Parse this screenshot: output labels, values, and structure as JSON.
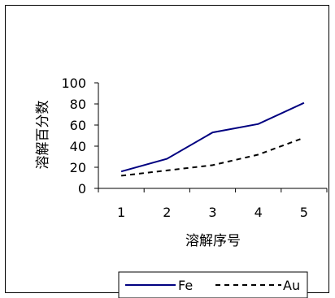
{
  "chart_data": {
    "type": "line",
    "categories": [
      "1",
      "2",
      "3",
      "4",
      "5"
    ],
    "series": [
      {
        "name": "Fe",
        "values": [
          16,
          28,
          53,
          61,
          81
        ],
        "color": "#000080",
        "style": "solid"
      },
      {
        "name": "Au",
        "values": [
          12,
          17,
          22,
          32,
          48
        ],
        "color": "#000000",
        "style": "dashed"
      }
    ],
    "xlabel": "溶解序号",
    "ylabel": "溶解百分数",
    "ylim": [
      0,
      100
    ],
    "yticks": [
      "0",
      "20",
      "40",
      "60",
      "80",
      "100"
    ],
    "grid": false,
    "legend_position": "bottom-right"
  }
}
